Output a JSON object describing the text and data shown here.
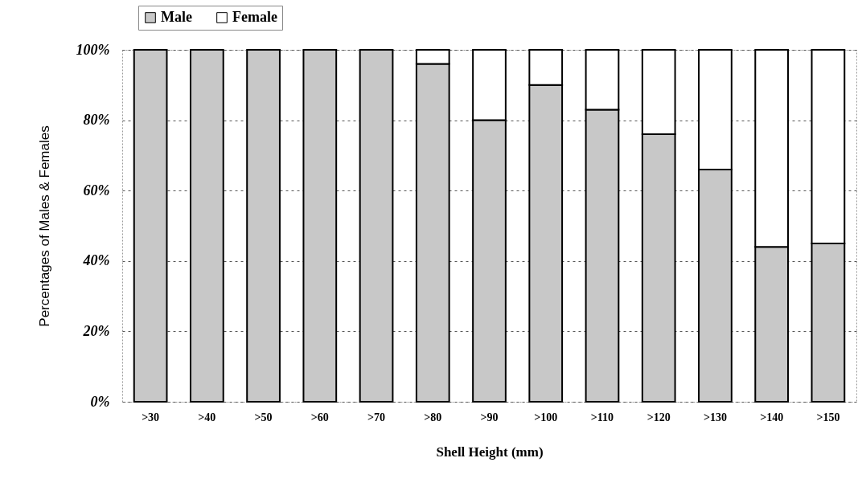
{
  "chart_data": {
    "type": "bar",
    "stacked": true,
    "xlabel": "Shell Height (mm)",
    "ylabel": "Percentages of Males & Females",
    "categories": [
      ">30",
      ">40",
      ">50",
      ">60",
      ">70",
      ">80",
      ">90",
      ">100",
      ">110",
      ">120",
      ">130",
      ">140",
      ">150"
    ],
    "series": [
      {
        "name": "Male",
        "color": "#c8c8c8",
        "values": [
          100,
          100,
          100,
          100,
          100,
          96,
          80,
          90,
          83,
          76,
          66,
          44,
          45
        ]
      },
      {
        "name": "Female",
        "color": "#ffffff",
        "values": [
          0,
          0,
          0,
          0,
          0,
          4,
          20,
          10,
          17,
          24,
          34,
          56,
          55
        ]
      }
    ],
    "ylim": [
      0,
      100
    ],
    "yticks": [
      {
        "value": 0,
        "label": "0%"
      },
      {
        "value": 20,
        "label": "20%"
      },
      {
        "value": 40,
        "label": "40%"
      },
      {
        "value": 60,
        "label": "60%"
      },
      {
        "value": 80,
        "label": "80%"
      },
      {
        "value": 100,
        "label": "100%"
      }
    ],
    "grid": "y",
    "legend": "top left"
  }
}
